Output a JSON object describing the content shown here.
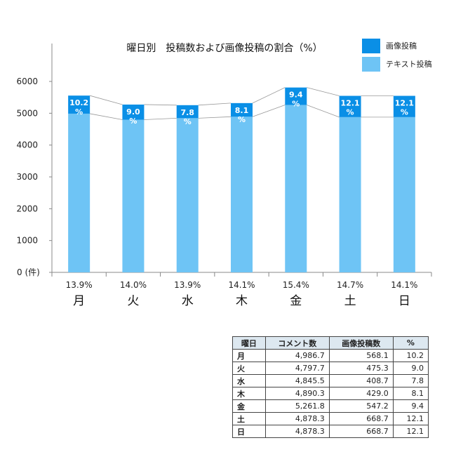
{
  "chart_data": {
    "type": "bar",
    "title": "曜日別　投稿数および画像投稿の割合（%）",
    "categories": [
      "月",
      "火",
      "水",
      "木",
      "金",
      "土",
      "日"
    ],
    "series": [
      {
        "name": "画像投稿",
        "color": "#0a8fe6",
        "values": [
          568.1,
          475.3,
          408.7,
          429.0,
          547.2,
          668.7,
          668.7
        ]
      },
      {
        "name": "テキスト投稿",
        "color": "#6ec4f5",
        "values": [
          4986.7,
          4797.7,
          4845.5,
          4890.3,
          5261.8,
          4878.3,
          4878.3
        ]
      }
    ],
    "bar_labels": [
      "10.2\n%",
      "9.0\n%",
      "7.8\n%",
      "8.1\n%",
      "9.4\n%",
      "12.1\n%",
      "12.1\n%"
    ],
    "bottom_percent_labels": [
      "13.9%",
      "14.0%",
      "13.9%",
      "14.1%",
      "15.4%",
      "14.7%",
      "14.1%"
    ],
    "ylim": [
      0,
      6000
    ],
    "yticks": [
      0,
      1000,
      2000,
      3000,
      4000,
      5000,
      6000
    ],
    "y_zero_label": "0 (件)",
    "ylabel": "",
    "xlabel": "",
    "grid": false,
    "legend_position": "top-right",
    "stacked": true
  },
  "table": {
    "headers": [
      "曜日",
      "コメント数",
      "画像投稿数",
      "%"
    ],
    "rows": [
      [
        "月",
        "4,986.7",
        "568.1",
        "10.2"
      ],
      [
        "火",
        "4,797.7",
        "475.3",
        "9.0"
      ],
      [
        "水",
        "4,845.5",
        "408.7",
        "7.8"
      ],
      [
        "木",
        "4,890.3",
        "429.0",
        "8.1"
      ],
      [
        "金",
        "5,261.8",
        "547.2",
        "9.4"
      ],
      [
        "土",
        "4,878.3",
        "668.7",
        "12.1"
      ],
      [
        "日",
        "4,878.3",
        "668.7",
        "12.1"
      ]
    ]
  }
}
